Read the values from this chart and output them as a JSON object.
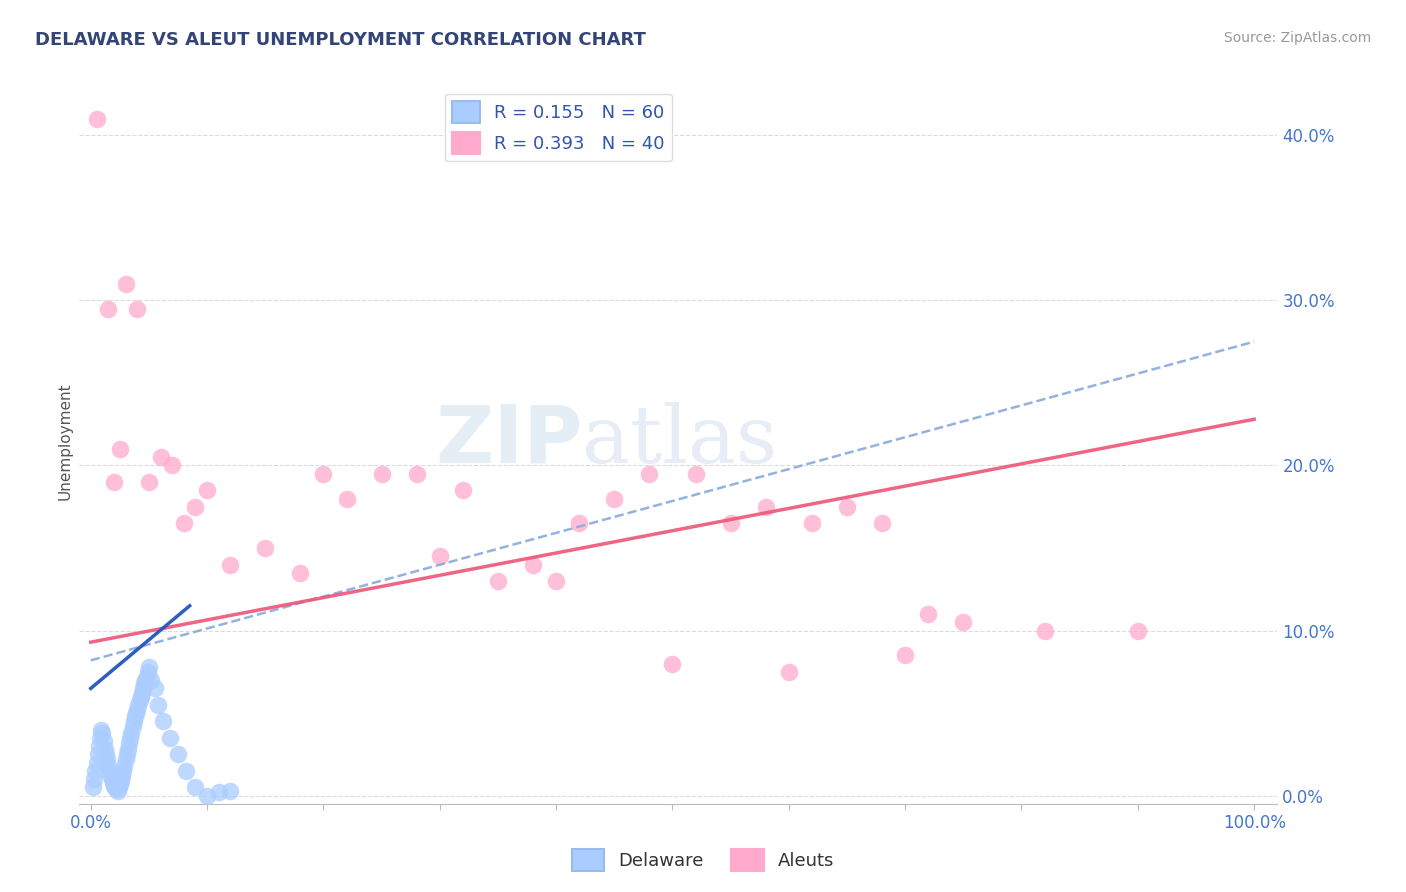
{
  "title": "DELAWARE VS ALEUT UNEMPLOYMENT CORRELATION CHART",
  "source": "Source: ZipAtlas.com",
  "ylabel": "Unemployment",
  "ytick_labels": [
    "0.0%",
    "10.0%",
    "20.0%",
    "30.0%",
    "40.0%"
  ],
  "ytick_values": [
    0.0,
    0.1,
    0.2,
    0.3,
    0.4
  ],
  "xtick_values": [
    0.0,
    0.1,
    0.2,
    0.3,
    0.4,
    0.5,
    0.6,
    0.7,
    0.8,
    0.9,
    1.0
  ],
  "xlim": [
    -0.01,
    1.02
  ],
  "ylim": [
    -0.005,
    0.435
  ],
  "legend_r_delaware": "R = 0.155",
  "legend_n_delaware": "N = 60",
  "legend_r_aleuts": "R = 0.393",
  "legend_n_aleuts": "N = 40",
  "delaware_color": "#aaccff",
  "aleuts_color": "#ffaacc",
  "delaware_line_color": "#2255bb",
  "aleuts_line_color": "#ee5577",
  "trendline_delaware_color": "#88aadd",
  "background_color": "#ffffff",
  "grid_color": "#cccccc",
  "watermark_color": "#ccdded",
  "delaware_x": [
    0.002,
    0.003,
    0.004,
    0.005,
    0.006,
    0.007,
    0.008,
    0.009,
    0.01,
    0.011,
    0.012,
    0.013,
    0.014,
    0.015,
    0.016,
    0.017,
    0.018,
    0.019,
    0.02,
    0.021,
    0.022,
    0.023,
    0.024,
    0.025,
    0.026,
    0.027,
    0.028,
    0.029,
    0.03,
    0.031,
    0.032,
    0.033,
    0.034,
    0.035,
    0.036,
    0.037,
    0.038,
    0.039,
    0.04,
    0.041,
    0.042,
    0.043,
    0.044,
    0.045,
    0.046,
    0.047,
    0.048,
    0.049,
    0.05,
    0.052,
    0.055,
    0.058,
    0.062,
    0.068,
    0.075,
    0.082,
    0.09,
    0.1,
    0.11,
    0.12
  ],
  "delaware_y": [
    0.005,
    0.01,
    0.015,
    0.02,
    0.025,
    0.03,
    0.035,
    0.04,
    0.038,
    0.033,
    0.028,
    0.025,
    0.022,
    0.018,
    0.015,
    0.012,
    0.01,
    0.008,
    0.006,
    0.005,
    0.004,
    0.003,
    0.005,
    0.007,
    0.009,
    0.012,
    0.015,
    0.018,
    0.022,
    0.025,
    0.028,
    0.032,
    0.035,
    0.038,
    0.042,
    0.045,
    0.048,
    0.05,
    0.052,
    0.055,
    0.058,
    0.06,
    0.062,
    0.065,
    0.068,
    0.07,
    0.072,
    0.075,
    0.078,
    0.07,
    0.065,
    0.055,
    0.045,
    0.035,
    0.025,
    0.015,
    0.005,
    0.0,
    0.002,
    0.003
  ],
  "aleuts_x": [
    0.005,
    0.015,
    0.02,
    0.025,
    0.03,
    0.04,
    0.05,
    0.06,
    0.07,
    0.08,
    0.09,
    0.1,
    0.12,
    0.15,
    0.18,
    0.2,
    0.22,
    0.25,
    0.28,
    0.3,
    0.32,
    0.35,
    0.38,
    0.4,
    0.42,
    0.45,
    0.48,
    0.5,
    0.52,
    0.55,
    0.58,
    0.6,
    0.62,
    0.65,
    0.68,
    0.7,
    0.72,
    0.75,
    0.82,
    0.9
  ],
  "aleuts_y": [
    0.41,
    0.295,
    0.19,
    0.21,
    0.31,
    0.295,
    0.19,
    0.205,
    0.2,
    0.165,
    0.175,
    0.185,
    0.14,
    0.15,
    0.135,
    0.195,
    0.18,
    0.195,
    0.195,
    0.145,
    0.185,
    0.13,
    0.14,
    0.13,
    0.165,
    0.18,
    0.195,
    0.08,
    0.195,
    0.165,
    0.175,
    0.075,
    0.165,
    0.175,
    0.165,
    0.085,
    0.11,
    0.105,
    0.1,
    0.1
  ],
  "del_trend_x0": 0.0,
  "del_trend_y0": 0.082,
  "del_trend_x1": 1.0,
  "del_trend_y1": 0.275,
  "al_trend_x0": 0.0,
  "al_trend_y0": 0.093,
  "al_trend_x1": 1.0,
  "al_trend_y1": 0.228,
  "del_line_x0": 0.0,
  "del_line_y0": 0.065,
  "del_line_x1": 0.085,
  "del_line_y1": 0.115
}
